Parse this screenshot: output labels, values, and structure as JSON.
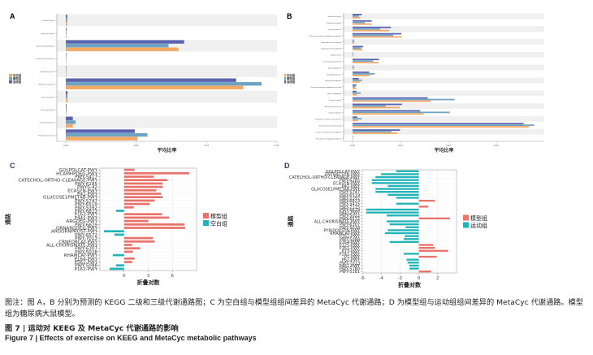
{
  "panels": {
    "a": "A",
    "b": "B",
    "c": "C",
    "d": "D"
  },
  "colors": {
    "blank": "#f5a862",
    "model": "#6fa3c4",
    "exercise": "#5a63b0",
    "pos": "#e8736b",
    "neg": "#21b3b8",
    "band": "#f0f0f0"
  },
  "chart_data": [
    {
      "panel": "A",
      "type": "bar",
      "orientation": "horizontal",
      "xlabel": "平均比率",
      "ylabel": "",
      "xlim": [
        0,
        0.15
      ],
      "xticks": [
        "0.00",
        "0.05",
        "0.10",
        "0.15"
      ],
      "legend": [
        "空白组",
        "模型组",
        "运动组"
      ],
      "categories": [
        "Immune System",
        "Digestive System",
        "Amino Acid Metabolism",
        "Cardiovascular Diseases",
        "Circulatory System",
        "Membrane Transport",
        "Nervous System",
        "Excretory System",
        "Infectious Diseases",
        "Poorly Characterized"
      ],
      "series": [
        {
          "name": "运动组",
          "values": [
            0.001,
            0.0005,
            0.084,
            0.0002,
            0.0002,
            0.121,
            0.0012,
            0.0005,
            0.005,
            0.049
          ]
        },
        {
          "name": "模型组",
          "values": [
            0.001,
            0.0005,
            0.073,
            0.0002,
            0.0002,
            0.139,
            0.0012,
            0.0006,
            0.007,
            0.058
          ]
        },
        {
          "name": "空白组",
          "values": [
            0.001,
            0.0005,
            0.08,
            0.0002,
            0.0002,
            0.126,
            0.0013,
            0.0005,
            0.005,
            0.051
          ]
        }
      ]
    },
    {
      "panel": "B",
      "type": "bar",
      "orientation": "horizontal",
      "xlabel": "平均比率",
      "ylabel": "",
      "xlim": [
        0,
        0.04
      ],
      "xticks": [
        "0.00",
        "0.01",
        "0.02",
        "0.03"
      ],
      "legend": [
        "空白组",
        "模型组",
        "运动组"
      ],
      "categories": [
        "Restriction enzyme",
        "Cytoskeleton proteins",
        "Lysine biosynthesis",
        "Alanine, aspartate and glutamate metabolism",
        "Arachidonic acid metabolism",
        "Cyanoamino acid metabolism",
        "Bladder cancer",
        "One carbon pool by folate",
        "Dioxin degradation",
        "Glycosyltransferases",
        "Nucleotide metabolism",
        "Protein processing in endoplasmic reticulum",
        "Toluene degradation",
        "Secretion system",
        "Transcription machinery",
        "Function unknown",
        "Metabolism of cofactors and vitamins",
        "General function prediction only",
        "Cysteine and methionine metabolism",
        "Other types of O-glycan biosynthesis"
      ],
      "series": [
        {
          "name": "运动组",
          "values": [
            0.0019,
            0.004,
            0.008,
            0.0102,
            0.0002,
            0.0022,
            0.0001,
            0.0055,
            0.0001,
            0.0035,
            0.0013,
            0.0008,
            0.0008,
            0.0157,
            0.0103,
            0.0141,
            0.001,
            0.0357,
            0.0099,
            0.0
          ]
        },
        {
          "name": "模型组",
          "values": [
            0.0013,
            0.0026,
            0.0058,
            0.0085,
            0.0004,
            0.0018,
            0.0002,
            0.0043,
            0.0004,
            0.0046,
            0.002,
            0.0006,
            0.0017,
            0.0213,
            0.0069,
            0.0203,
            0.0019,
            0.0379,
            0.0081,
            0.0
          ]
        },
        {
          "name": "空白组",
          "values": [
            0.0016,
            0.004,
            0.0076,
            0.0103,
            0.0002,
            0.0021,
            0.0001,
            0.0054,
            0.0002,
            0.0036,
            0.0015,
            0.0008,
            0.0009,
            0.0163,
            0.0098,
            0.0148,
            0.0011,
            0.0368,
            0.0093,
            0.0
          ]
        }
      ]
    },
    {
      "panel": "C",
      "type": "bar",
      "orientation": "horizontal",
      "xlabel": "折叠对数",
      "ylabel": "通路",
      "xlim": [
        -3,
        9
      ],
      "xticks": [
        "0",
        "3",
        "6"
      ],
      "xtick_values": [
        0,
        3,
        6
      ],
      "legend": [
        "模型组",
        "空白组"
      ],
      "categories": [
        "GOLPDLCAT-PWY",
        "HCAMHPDEG-PWY",
        "PWY-5417",
        "CATECHOL-ORTHO-CLEAVAGE-PWY",
        "PWY-6185",
        "PWY0-42",
        "ECASYN-PWY",
        "P41-PWY",
        "GLUCOSE1PMETAB-PWY",
        "PWY-5747",
        "PWY-6519",
        "PWY-5392",
        "PWY-6823",
        "P163-PWY",
        "P441-PWY",
        "ARGDEG-PWY",
        "PWY-6629",
        "ORNARGDEG-PWY",
        "ARGORNPROST-PWY",
        "PWY-6572",
        "PWY-7013",
        "CRNFORCAT-PWY",
        "ALL-CHORISMATE-PWY",
        "PWY-6307",
        "PWY-5028",
        "RHAMCAT-PWY",
        "P164-PWY",
        "P562-PWY",
        "PWY-5088",
        "P162-PWY"
      ],
      "values": [
        1.3,
        8.1,
        3.7,
        5.4,
        4.8,
        4.8,
        4.0,
        4.6,
        4.8,
        3.8,
        3.2,
        1.2,
        -1.0,
        4.7,
        5.6,
        3.0,
        7.5,
        7.6,
        -2.5,
        -1.2,
        3.6,
        3.8,
        1.0,
        2.0,
        1.1,
        -1.4,
        1.3,
        1.0,
        -1.0,
        -1.8
      ]
    },
    {
      "panel": "D",
      "type": "bar",
      "orientation": "horizontal",
      "xlabel": "折叠对数",
      "ylabel": "通路",
      "xlim": [
        -6,
        4
      ],
      "xticks": [
        "-6",
        "-4",
        "-2",
        "0",
        "2"
      ],
      "xtick_values": [
        -6,
        -4,
        -2,
        0,
        2
      ],
      "legend": [
        "模型组",
        "运动组"
      ],
      "categories": [
        "GOLPDLCAT-PWY",
        "ENTBACSYN-PWY",
        "CATECHOL-ORTHO-CLEAVAGE-PWY",
        "PWY-6185",
        "ECASYN-PWY",
        "P41-PWY",
        "GLUCOSE1PMETAB-PWY",
        "PWY-5747",
        "PWY-6519",
        "PWY-5392",
        "PWY-6823",
        "PWY-5415",
        "PWY-7115",
        "PWY-6629",
        "P441-PWY",
        "PWY-5022",
        "PWY-6572",
        "ALL-CHORISMATE-PWY",
        "PWY-6307",
        "PWY-5028",
        "PYRIDOXSYN-PWY",
        "RHAMCAT-PWY",
        "P162-PWY",
        "PWY-5088",
        "P164-PWY",
        "P125-PWY",
        "P161-PWY",
        "P23-PWY",
        "P241-PWY",
        "P1-PWY",
        "P62-PWY",
        "PWY-7013",
        "P461-PWY",
        "PWY-5180",
        "PWY-5181"
      ],
      "values": [
        -2.4,
        -4.0,
        -4.6,
        -5.0,
        -5.0,
        -3.3,
        -4.6,
        -4.6,
        -3.3,
        -2.4,
        1.7,
        -2.4,
        1.0,
        -5.6,
        -5.6,
        -3.4,
        3.3,
        -3.4,
        -3.1,
        -1.4,
        -3.3,
        -3.6,
        -1.5,
        -1.6,
        -3.1,
        1.5,
        1.7,
        3.1,
        -1.6,
        1.9,
        -1.3,
        -1.2,
        -1.0,
        -1.0,
        1.3
      ]
    }
  ],
  "caption": {
    "note": "图注：图 A，B 分别为预测的 KEGG 二级和三级代谢通路图；C 为空白组与模型组组间差异的 MetaCyc 代谢通路；D 为模型组与运动组组间差异的 MetaCyc 代谢通路。模型组为糖尿病大鼠模型。",
    "title_cn": "图 7 | 运动对 KEEG 及 MetaCyc 代谢通路的影响",
    "title_en": "Figure 7  |  Effects of exercise on KEEG and MetaCyc metabolic pathways"
  }
}
